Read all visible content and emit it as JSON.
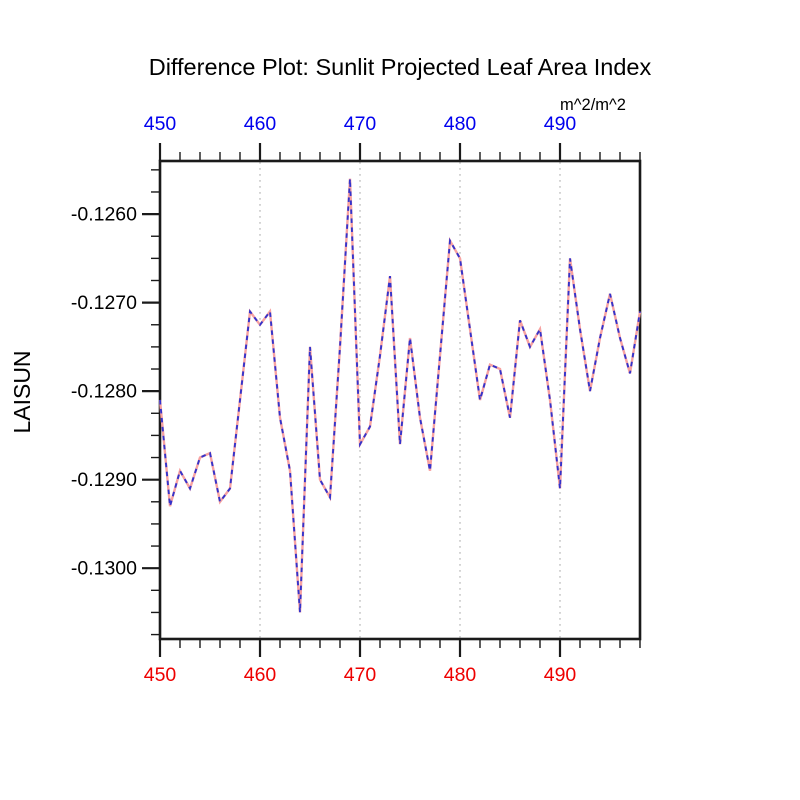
{
  "page": {
    "background": "#ffffff"
  },
  "chart_data": {
    "type": "line",
    "title": "Difference Plot: Sunlit Projected Leaf Area Index",
    "ylabel": "LAISUN",
    "unit_label": "m^2/m^2",
    "xlim": [
      450,
      498
    ],
    "ylim": [
      -0.1308,
      -0.1254
    ],
    "x": [
      450,
      451,
      452,
      453,
      454,
      455,
      456,
      457,
      458,
      459,
      460,
      461,
      462,
      463,
      464,
      465,
      466,
      467,
      468,
      469,
      470,
      471,
      472,
      473,
      474,
      475,
      476,
      477,
      478,
      479,
      480,
      481,
      482,
      483,
      484,
      485,
      486,
      487,
      488,
      489,
      490,
      491,
      492,
      493,
      494,
      495,
      496,
      497,
      498
    ],
    "series": [
      {
        "name": "case-line-salmon",
        "color": "#f7a2a2",
        "dash": "",
        "width": 2.4,
        "values": [
          -0.1281,
          -0.1293,
          -0.1289,
          -0.1291,
          -0.12875,
          -0.1287,
          -0.12925,
          -0.1291,
          -0.1281,
          -0.1271,
          -0.12725,
          -0.1271,
          -0.1283,
          -0.1289,
          -0.1305,
          -0.1275,
          -0.129,
          -0.1292,
          -0.1275,
          -0.1256,
          -0.1286,
          -0.1284,
          -0.1276,
          -0.1267,
          -0.1286,
          -0.1274,
          -0.1283,
          -0.1289,
          -0.1276,
          -0.1263,
          -0.1265,
          -0.1273,
          -0.1281,
          -0.1277,
          -0.12775,
          -0.1283,
          -0.1272,
          -0.1275,
          -0.1273,
          -0.1281,
          -0.1291,
          -0.1265,
          -0.1273,
          -0.128,
          -0.1274,
          -0.1269,
          -0.1274,
          -0.1278,
          -0.1271
        ]
      },
      {
        "name": "case-line-blue-dashed",
        "color": "#3333cc",
        "dash": "4.5,4.5",
        "width": 1.9,
        "values": [
          -0.1281,
          -0.1293,
          -0.1289,
          -0.1291,
          -0.12875,
          -0.1287,
          -0.12925,
          -0.1291,
          -0.1281,
          -0.1271,
          -0.12725,
          -0.1271,
          -0.1283,
          -0.1289,
          -0.1305,
          -0.1275,
          -0.129,
          -0.1292,
          -0.1275,
          -0.1256,
          -0.1286,
          -0.1284,
          -0.1276,
          -0.1267,
          -0.1286,
          -0.1274,
          -0.1283,
          -0.1289,
          -0.1276,
          -0.1263,
          -0.1265,
          -0.1273,
          -0.1281,
          -0.1277,
          -0.12775,
          -0.1283,
          -0.1272,
          -0.1275,
          -0.1273,
          -0.1281,
          -0.1291,
          -0.1265,
          -0.1273,
          -0.128,
          -0.1274,
          -0.1269,
          -0.1274,
          -0.1278,
          -0.1271
        ]
      }
    ],
    "x_ticks_major": [
      450,
      460,
      470,
      480,
      490
    ],
    "x_tick_labels": [
      "450",
      "460",
      "470",
      "480",
      "490"
    ],
    "x_tick_minor_step": 2,
    "y_ticks_major": [
      -0.126,
      -0.127,
      -0.128,
      -0.129,
      -0.13
    ],
    "y_tick_labels": [
      "-0.1260",
      "-0.1270",
      "-0.1280",
      "-0.1290",
      "-0.1300"
    ],
    "y_tick_minor_step": 0.00025,
    "x_gridlines": [
      460,
      470,
      480,
      490
    ],
    "grid": "vertical-dotted-only",
    "legend_position": "none",
    "colors": {
      "top_axis_labels": "#0000ee",
      "bottom_axis_labels": "#ee0000",
      "left_axis_labels": "#000000",
      "frame_and_ticks": "#1a1a1a",
      "gridline": "#c9c9c9"
    }
  }
}
